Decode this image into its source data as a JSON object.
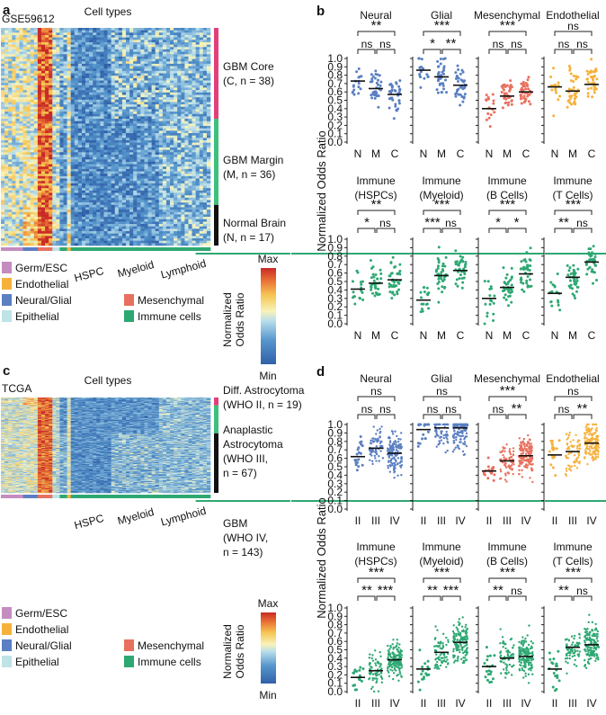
{
  "panels": {
    "a": {
      "letter": "a",
      "dataset": "GSE59612",
      "cell_types_title": "Cell types",
      "groups": [
        {
          "label": "GBM Core",
          "label2": "(C, n = 38)",
          "color": "#e23f7a"
        },
        {
          "label": "GBM Margin",
          "label2": "(M, n = 36)",
          "color": "#3ec07c"
        },
        {
          "label": "Normal Brain",
          "label2": "(N, n = 17)",
          "color": "#111111"
        }
      ],
      "bottom_labels": [
        "HSPC",
        "Myeloid",
        "Lymphoid"
      ]
    },
    "c": {
      "letter": "c",
      "dataset": "TCGA",
      "cell_types_title": "Cell types",
      "groups": [
        {
          "lines": [
            "Diff. Astrocytoma",
            "(WHO II, n = 19)"
          ],
          "color": "#e23f7a"
        },
        {
          "lines": [
            "Anaplastic",
            "Astrocytoma",
            "(WHO III,",
            "n = 67)"
          ],
          "color": "#3ec07c"
        },
        {
          "lines": [
            "GBM",
            "(WHO IV,",
            "n = 143)"
          ],
          "color": "#111111"
        }
      ],
      "bottom_labels": [
        "HSPC",
        "Myeloid",
        "Lymphoid"
      ]
    },
    "b": {
      "letter": "b"
    },
    "d": {
      "letter": "d"
    }
  },
  "legend": {
    "items": [
      {
        "label": "Germ/ESC",
        "color": "#c58cc0"
      },
      {
        "label": "Endothelial",
        "color": "#f6b13c"
      },
      {
        "label": "Neural/Glial",
        "color": "#5a7fc2"
      },
      {
        "label": "Mesenchymal",
        "color": "#e8705e"
      },
      {
        "label": "Epithelial",
        "color": "#bfe3e6"
      },
      {
        "label": "Immune cells",
        "color": "#2ea873"
      }
    ],
    "colorbar_title": [
      "Normalized",
      "Odds Ratio"
    ],
    "colorbar_max": "Max",
    "colorbar_min": "Min"
  },
  "chart_data": [
    {
      "panel": "b",
      "type": "scatter",
      "ylabel": "Normalized Odds Ratio",
      "ylim": [
        0,
        1
      ],
      "yticks": [
        "0.0",
        "0.1",
        "0.2",
        "0.3",
        "0.4",
        "0.5",
        "0.6",
        "0.7",
        "0.8",
        "0.9",
        "1.0"
      ],
      "subplots": [
        {
          "title": [
            "Neural"
          ],
          "categories": [
            "N",
            "M",
            "C"
          ],
          "color": "#5a7fc2",
          "medians": [
            0.73,
            0.64,
            0.57
          ],
          "n": [
            17,
            36,
            38
          ],
          "sig": {
            "top": "**",
            "left": "ns",
            "right": "ns"
          }
        },
        {
          "title": [
            "Glial"
          ],
          "categories": [
            "N",
            "M",
            "C"
          ],
          "color": "#5a7fc2",
          "medians": [
            0.86,
            0.78,
            0.68
          ],
          "n": [
            17,
            36,
            38
          ],
          "sig": {
            "top": "***",
            "left": "*",
            "right": "**"
          }
        },
        {
          "title": [
            "Mesenchymal"
          ],
          "categories": [
            "N",
            "M",
            "C"
          ],
          "color": "#e8705e",
          "medians": [
            0.4,
            0.55,
            0.6
          ],
          "n": [
            17,
            36,
            38
          ],
          "sig": {
            "top": "***",
            "left": "ns",
            "right": "ns"
          }
        },
        {
          "title": [
            "Endothelial"
          ],
          "categories": [
            "N",
            "M",
            "C"
          ],
          "color": "#f6b13c",
          "medians": [
            0.66,
            0.61,
            0.69
          ],
          "n": [
            17,
            36,
            38
          ],
          "sig": {
            "top": "ns",
            "left": "ns",
            "right": "ns"
          }
        },
        {
          "title": [
            "Immune",
            "(HSPCs)"
          ],
          "categories": [
            "N",
            "M",
            "C"
          ],
          "color": "#2ea873",
          "medians": [
            0.41,
            0.48,
            0.52
          ],
          "n": [
            17,
            36,
            38
          ],
          "sig": {
            "top": "**",
            "left": "*",
            "right": "ns"
          }
        },
        {
          "title": [
            "Immune",
            "(Myeloid)"
          ],
          "categories": [
            "N",
            "M",
            "C"
          ],
          "color": "#2ea873",
          "medians": [
            0.28,
            0.57,
            0.63
          ],
          "n": [
            17,
            36,
            38
          ],
          "sig": {
            "top": "***",
            "left": "***",
            "right": "ns"
          }
        },
        {
          "title": [
            "Immune",
            "(B Cells)"
          ],
          "categories": [
            "N",
            "M",
            "C"
          ],
          "color": "#2ea873",
          "medians": [
            0.3,
            0.43,
            0.59
          ],
          "n": [
            17,
            36,
            38
          ],
          "sig": {
            "top": "***",
            "left": "*",
            "right": "*"
          }
        },
        {
          "title": [
            "Immune",
            "(T Cells)"
          ],
          "categories": [
            "N",
            "M",
            "C"
          ],
          "color": "#2ea873",
          "medians": [
            0.36,
            0.55,
            0.73
          ],
          "n": [
            17,
            36,
            38
          ],
          "sig": {
            "top": "***",
            "left": "**",
            "right": "ns"
          }
        }
      ]
    },
    {
      "panel": "d",
      "type": "scatter",
      "ylabel": "Normalized Odds Ratio",
      "ylim": [
        0,
        1
      ],
      "yticks": [
        "0.0",
        "0.1",
        "0.2",
        "0.3",
        "0.4",
        "0.5",
        "0.6",
        "0.7",
        "0.8",
        "0.9",
        "1.0"
      ],
      "subplots": [
        {
          "title": [
            "Neural"
          ],
          "categories": [
            "II",
            "III",
            "IV"
          ],
          "color": "#5a7fc2",
          "medians": [
            0.62,
            0.72,
            0.66
          ],
          "n": [
            19,
            67,
            143
          ],
          "sig": {
            "top": "ns",
            "left": "ns",
            "right": "ns"
          }
        },
        {
          "title": [
            "Glial"
          ],
          "categories": [
            "II",
            "III",
            "IV"
          ],
          "color": "#5a7fc2",
          "medians": [
            0.94,
            0.96,
            0.96
          ],
          "n": [
            19,
            67,
            143
          ],
          "sig": {
            "top": "ns",
            "left": "ns",
            "right": "ns"
          }
        },
        {
          "title": [
            "Mesenchymal"
          ],
          "categories": [
            "II",
            "III",
            "IV"
          ],
          "color": "#e8705e",
          "medians": [
            0.45,
            0.57,
            0.63
          ],
          "n": [
            19,
            67,
            143
          ],
          "sig": {
            "top": "***",
            "left": "ns",
            "right": "**"
          }
        },
        {
          "title": [
            "Endothelial"
          ],
          "categories": [
            "II",
            "III",
            "IV"
          ],
          "color": "#f6b13c",
          "medians": [
            0.64,
            0.68,
            0.78
          ],
          "n": [
            19,
            67,
            143
          ],
          "sig": {
            "top": "ns",
            "left": "ns",
            "right": "**"
          }
        },
        {
          "title": [
            "Immune",
            "(HSPCs)"
          ],
          "categories": [
            "II",
            "III",
            "IV"
          ],
          "color": "#2ea873",
          "medians": [
            0.17,
            0.25,
            0.38
          ],
          "n": [
            19,
            67,
            143
          ],
          "sig": {
            "top": "***",
            "left": "**",
            "right": "***"
          }
        },
        {
          "title": [
            "Immune",
            "(Myeloid)"
          ],
          "categories": [
            "II",
            "III",
            "IV"
          ],
          "color": "#2ea873",
          "medians": [
            0.27,
            0.47,
            0.59
          ],
          "n": [
            19,
            67,
            143
          ],
          "sig": {
            "top": "***",
            "left": "**",
            "right": "***"
          }
        },
        {
          "title": [
            "Immune",
            "(B Cells)"
          ],
          "categories": [
            "II",
            "III",
            "IV"
          ],
          "color": "#2ea873",
          "medians": [
            0.3,
            0.4,
            0.42
          ],
          "n": [
            19,
            67,
            143
          ],
          "sig": {
            "top": "***",
            "left": "**",
            "right": "ns"
          }
        },
        {
          "title": [
            "Immune",
            "(T Cells)"
          ],
          "categories": [
            "II",
            "III",
            "IV"
          ],
          "color": "#2ea873",
          "medians": [
            0.27,
            0.53,
            0.56
          ],
          "n": [
            19,
            67,
            143
          ],
          "sig": {
            "top": "***",
            "left": "**",
            "right": "ns"
          }
        }
      ]
    }
  ]
}
